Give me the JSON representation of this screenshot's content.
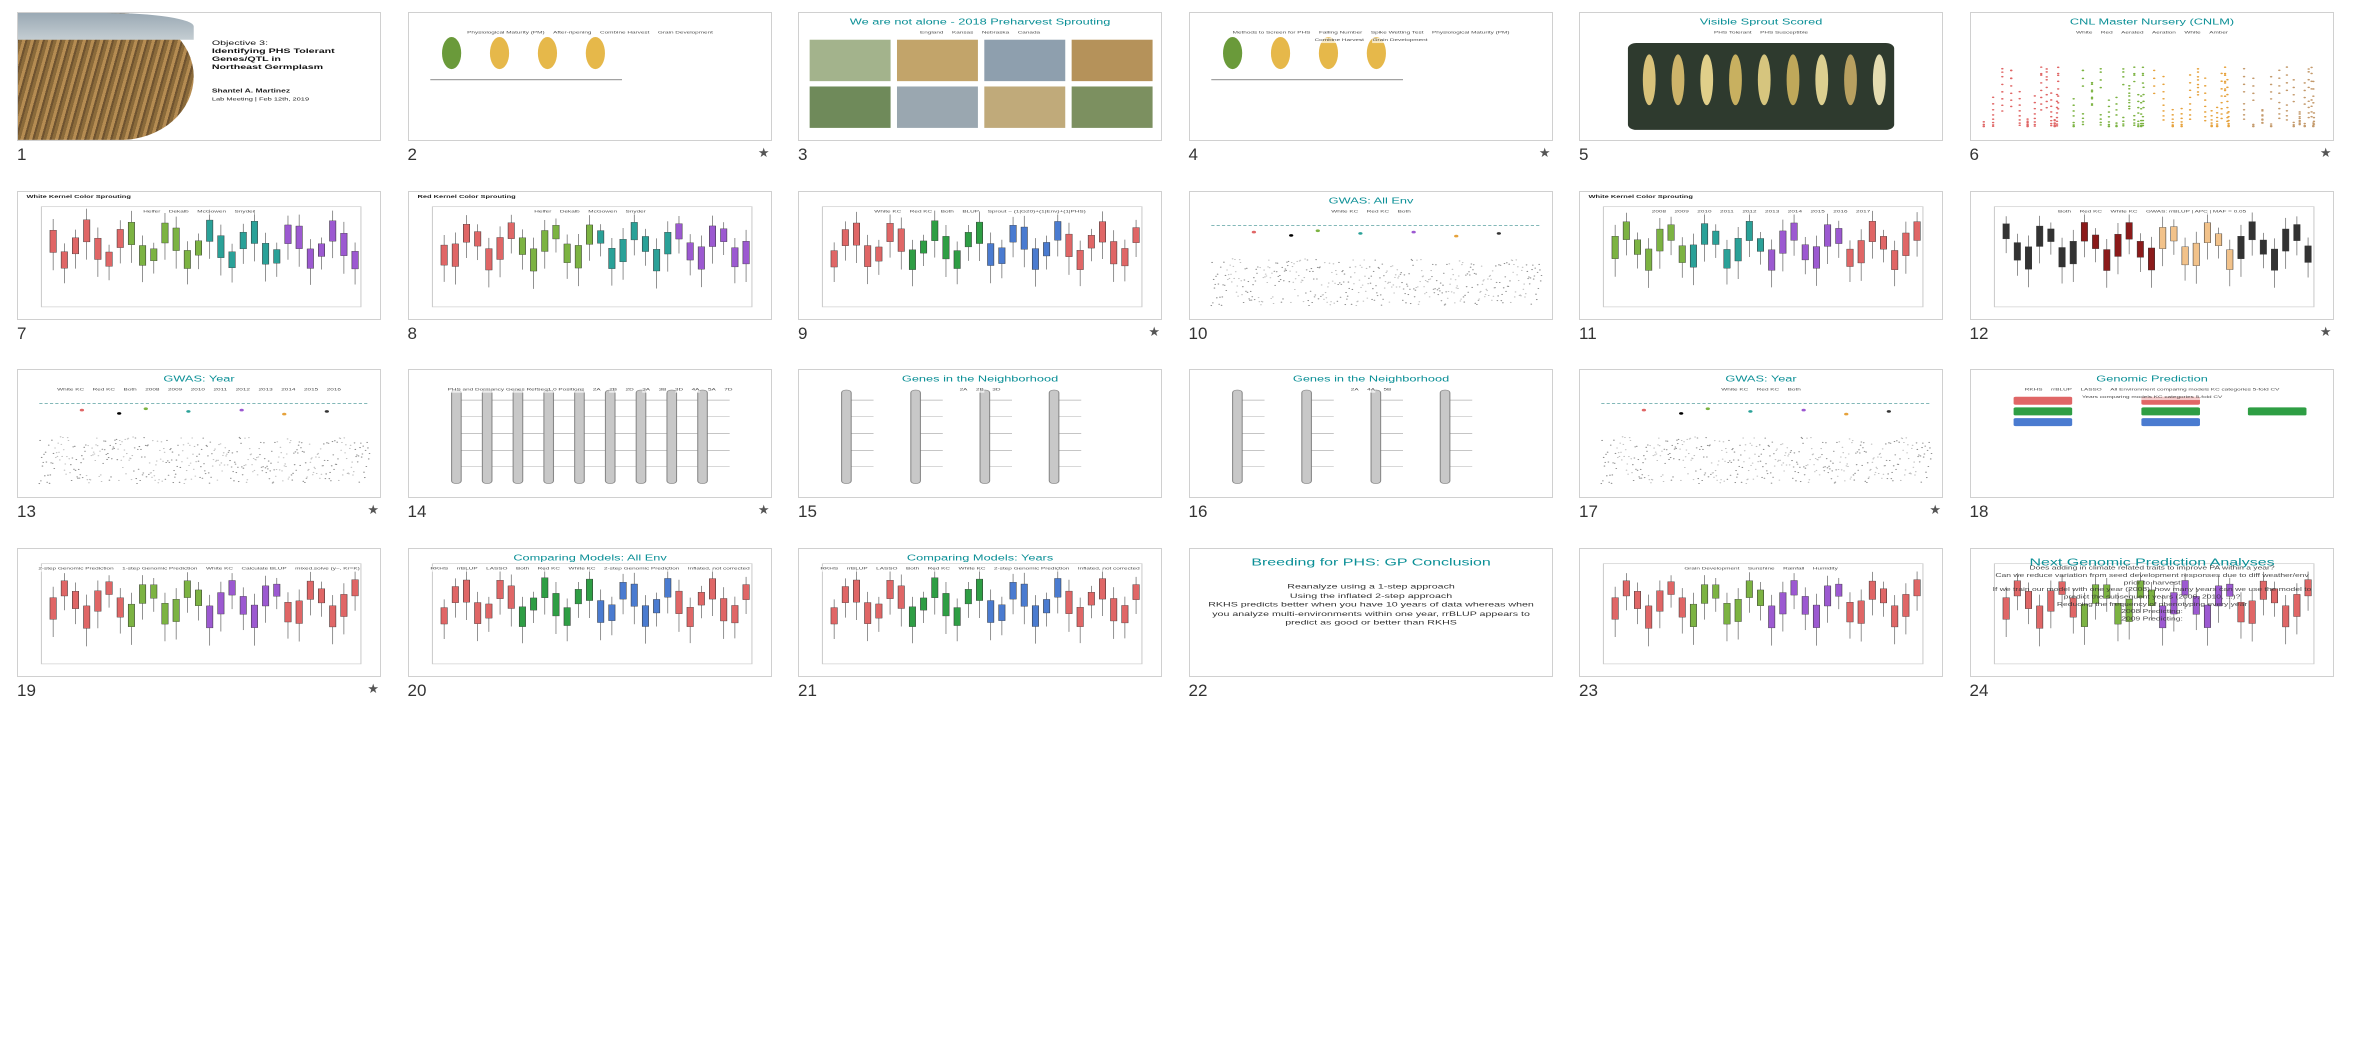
{
  "slides": [
    {
      "num": "1",
      "title": "",
      "kind": "title",
      "starred": false,
      "objective_lines": [
        "Objective 3:",
        "Identifying PHS Tolerant",
        "Genes/QTL in",
        "Northeast Germplasm"
      ],
      "author": "Shantel A. Martinez",
      "meeting": "Lab Meeting | Feb 12th, 2019"
    },
    {
      "num": "2",
      "title": "",
      "kind": "diagram",
      "starred": true,
      "labels": [
        "Physiological Maturity (PM)",
        "After-ripening",
        "Combine Harvest",
        "Grain Development"
      ]
    },
    {
      "num": "3",
      "title": "We are not alone - 2018 Preharvest Sprouting",
      "kind": "photos",
      "starred": false,
      "labels": [
        "England",
        "Kansas",
        "Nebraska",
        "Canada"
      ]
    },
    {
      "num": "4",
      "title": "",
      "kind": "diagram",
      "starred": true,
      "labels": [
        "Methods to Screen for PHS",
        "Falling Number",
        "Spike Wetting Test",
        "Physiological Maturity (PM)",
        "Combine Harvest",
        "Grain Development"
      ]
    },
    {
      "num": "5",
      "title": "Visible Sprout Scored",
      "kind": "spikes",
      "starred": false,
      "labels": [
        "PHS Tolerant",
        "PHS Susceptible"
      ]
    },
    {
      "num": "6",
      "title": "CNL Master Nursery (CNLM)",
      "kind": "scatter",
      "starred": true,
      "labels": [
        "White",
        "Red",
        "Aerated",
        "Aeration",
        "White",
        "Amber"
      ]
    },
    {
      "num": "7",
      "title": "White Kernel Color Sprouting",
      "kind": "boxplot",
      "starred": false,
      "labels": [
        "Helfer",
        "Dekalb",
        "McGowen",
        "Snyder"
      ]
    },
    {
      "num": "8",
      "title": "Red Kernel Color Sprouting",
      "kind": "boxplot",
      "starred": false,
      "labels": [
        "Helfer",
        "Dekalb",
        "McGowen",
        "Snyder"
      ]
    },
    {
      "num": "9",
      "title": "",
      "kind": "gwas3",
      "starred": true,
      "labels": [
        "White KC",
        "Red KC",
        "Both",
        "BLUP",
        "Sprout ~ (1|G20)+(1|Env)+(1|PHS)"
      ]
    },
    {
      "num": "10",
      "title": "GWAS: All Env",
      "kind": "manhattan",
      "starred": false,
      "labels": [
        "White KC",
        "Red KC",
        "Both"
      ]
    },
    {
      "num": "11",
      "title": "White Kernel Color Sprouting",
      "kind": "yearbox",
      "starred": false,
      "labels": [
        "2008",
        "2009",
        "2010",
        "2011",
        "2012",
        "2013",
        "2014",
        "2015",
        "2016",
        "2017"
      ]
    },
    {
      "num": "12",
      "title": "",
      "kind": "darkbox",
      "starred": true,
      "labels": [
        "Both",
        "Red KC",
        "White KC",
        "GWAS: rrBLUP | APC | MAF = 0.05"
      ]
    },
    {
      "num": "13",
      "title": "GWAS: Year",
      "kind": "manhattan",
      "starred": true,
      "labels": [
        "White KC",
        "Red KC",
        "Both",
        "2008",
        "2009",
        "2010",
        "2011",
        "2012",
        "2013",
        "2014",
        "2015",
        "2016"
      ]
    },
    {
      "num": "14",
      "title": "",
      "kind": "chromosome",
      "starred": true,
      "labels": [
        "PHS and Dormancy Genes RefSeq1.0 Positions",
        "2A",
        "2B",
        "2D",
        "3A",
        "3B",
        "3D",
        "4A",
        "5A",
        "7D"
      ]
    },
    {
      "num": "15",
      "title": "Genes in the Neighborhood",
      "kind": "chromosome",
      "starred": false,
      "labels": [
        "2A",
        "2B",
        "3D"
      ]
    },
    {
      "num": "16",
      "title": "Genes in the Neighborhood",
      "kind": "chromosome",
      "starred": false,
      "labels": [
        "2A",
        "4A",
        "5B"
      ]
    },
    {
      "num": "17",
      "title": "GWAS: Year",
      "kind": "manhattan",
      "starred": true,
      "labels": [
        "White KC",
        "Red KC",
        "Both"
      ]
    },
    {
      "num": "18",
      "title": "Genomic Prediction",
      "kind": "gp",
      "starred": false,
      "labels": [
        "RKHS",
        "rrBLUP",
        "LASSO",
        "All Environment comparing models KC categories 5-fold CV",
        "Years comparing models KC categories 5-fold CV"
      ]
    },
    {
      "num": "19",
      "title": "",
      "kind": "twostep",
      "starred": true,
      "labels": [
        "2-step Genomic Prediction",
        "1-step Genomic Prediction",
        "White KC",
        "Calculate BLUP",
        "mixed.solve (y~, Kr=K)"
      ]
    },
    {
      "num": "20",
      "title": "Comparing Models: All Env",
      "kind": "compare",
      "starred": false,
      "labels": [
        "RKHS",
        "rrBLUP",
        "LASSO",
        "Both",
        "Red KC",
        "White KC",
        "2-step Genomic Prediction",
        "Inflated, not corrected"
      ]
    },
    {
      "num": "21",
      "title": "Comparing Models: Years",
      "kind": "compare",
      "starred": false,
      "labels": [
        "RKHS",
        "rrBLUP",
        "LASSO",
        "Both",
        "Red KC",
        "White KC",
        "2-step Genomic Prediction",
        "Inflated, not corrected"
      ]
    },
    {
      "num": "22",
      "title": "Breeding for PHS: GP Conclusion",
      "kind": "conclusion",
      "starred": false,
      "labels": [
        "Reanalyze using a 1-step approach",
        "Using the inflated 2-step approach",
        "RKHS predicts better when you have 10 years of data whereas when you analyze multi-environments within one year, rrBLUP appears to predict as good or better than RKHS"
      ]
    },
    {
      "num": "23",
      "title": "",
      "kind": "question",
      "starred": false,
      "labels": [
        "Grain Development",
        "Sunshine",
        "Rainfall",
        "Humidity"
      ]
    },
    {
      "num": "24",
      "title": "Next Genomic Prediction Analyses",
      "kind": "next",
      "starred": false,
      "labels": [
        "Does adding in climate related traits to improve PA within a year?",
        "Can we reduce variation from seed development responses due to diff weather/env prior to harvest",
        "If we train our model with one year (2008), how many years can we use the model to predict the subsequent years (2009, 2010, ...)?",
        "Reducing the frequency of phenotyping every year",
        "2008 Predicting:",
        "2009 Predicting:"
      ]
    }
  ],
  "icons": {
    "star": "star-icon"
  }
}
